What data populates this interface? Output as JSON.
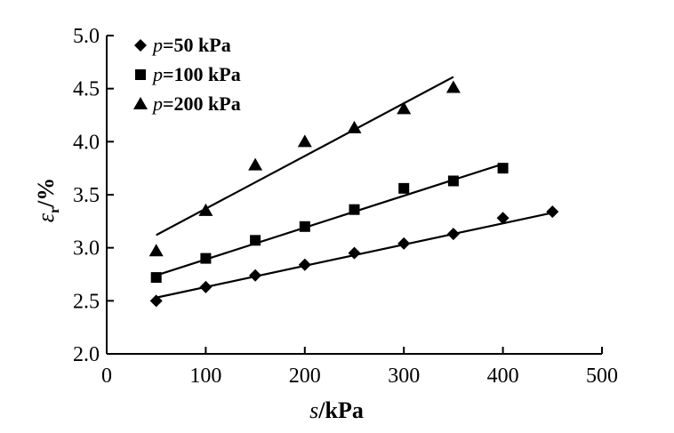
{
  "chart_data": {
    "type": "scatter",
    "title": "",
    "xlabel_italic": "s",
    "xlabel_rest": "/kPa",
    "ylabel_italic": "ε",
    "ylabel_sub": "r",
    "ylabel_rest": "/%",
    "xlim": [
      0,
      500
    ],
    "ylim": [
      2.0,
      5.0
    ],
    "x_ticks": [
      0,
      100,
      200,
      300,
      400,
      500
    ],
    "y_ticks": [
      2.0,
      2.5,
      3.0,
      3.5,
      4.0,
      4.5,
      5.0
    ],
    "x_tick_labels": [
      "0",
      "100",
      "200",
      "300",
      "400",
      "500"
    ],
    "y_tick_labels": [
      "2.0",
      "2.5",
      "3.0",
      "3.5",
      "4.0",
      "4.5",
      "5.0"
    ],
    "legend_position": "top-left",
    "series": [
      {
        "name": "p=50 kPa",
        "legend_italic": "p",
        "legend_rest": "=50 kPa",
        "marker": "diamond",
        "x": [
          50,
          100,
          150,
          200,
          250,
          300,
          350,
          400,
          450
        ],
        "y": [
          2.5,
          2.63,
          2.74,
          2.84,
          2.95,
          3.04,
          3.13,
          3.28,
          3.34
        ],
        "fit": {
          "x": [
            50,
            450
          ],
          "y": [
            2.53,
            3.33
          ]
        }
      },
      {
        "name": "p=100 kPa",
        "legend_italic": "p",
        "legend_rest": "=100 kPa",
        "marker": "square",
        "x": [
          50,
          100,
          150,
          200,
          250,
          300,
          350,
          400
        ],
        "y": [
          2.72,
          2.9,
          3.07,
          3.2,
          3.36,
          3.56,
          3.63,
          3.75
        ],
        "fit": {
          "x": [
            50,
            400
          ],
          "y": [
            2.74,
            3.79
          ]
        }
      },
      {
        "name": "p=200 kPa",
        "legend_italic": "p",
        "legend_rest": "=200 kPa",
        "marker": "triangle",
        "x": [
          50,
          100,
          150,
          200,
          250,
          300,
          350
        ],
        "y": [
          2.97,
          3.35,
          3.78,
          4.0,
          4.13,
          4.31,
          4.51
        ],
        "fit": {
          "x": [
            50,
            350
          ],
          "y": [
            3.12,
            4.61
          ]
        }
      }
    ]
  }
}
